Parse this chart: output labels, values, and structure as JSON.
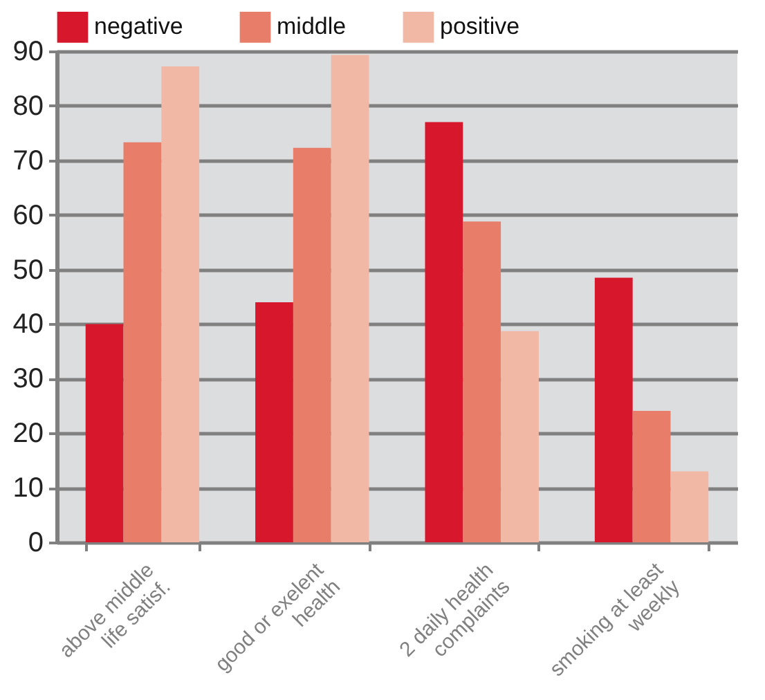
{
  "chart_data": {
    "type": "bar",
    "categories": [
      "above middle\nlife satisf.",
      "good or exelent\nhealth",
      "2 daily health\ncomplaints",
      "smoking at least\nweekly"
    ],
    "series": [
      {
        "name": "negative",
        "color": "#d7172b",
        "values": [
          40,
          44,
          77,
          48.5
        ]
      },
      {
        "name": "middle",
        "color": "#e87d69",
        "values": [
          73.3,
          72.3,
          58.8,
          24.1
        ]
      },
      {
        "name": "positive",
        "color": "#f2b8a6",
        "values": [
          87.2,
          89.3,
          38.7,
          13
        ]
      }
    ],
    "ylim": [
      0,
      90
    ],
    "yticks": [
      0,
      10,
      20,
      30,
      40,
      50,
      60,
      70,
      80,
      90
    ],
    "grid": "y",
    "legend": "top"
  }
}
